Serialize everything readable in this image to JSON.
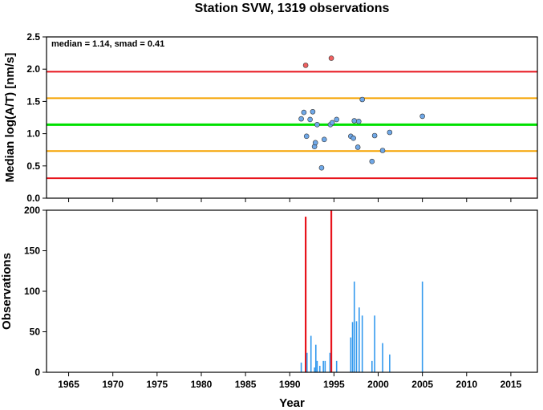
{
  "colors": {
    "red_line": "#e8141c",
    "orange_line": "#f5a300",
    "green_line": "#00e000",
    "point_blue": "#6fa8e8",
    "point_red": "#f06060",
    "bar_blue": "#3399ee",
    "bar_red": "#e8141c",
    "frame": "#000000"
  },
  "chart_data": [
    {
      "type": "scatter",
      "title": "Station SVW, 1319 observations",
      "annotation": "median = 1.14, smad = 0.41",
      "ylabel": "Median log(A/T) [nm/s]",
      "xlim": [
        1962.5,
        2018
      ],
      "ylim": [
        0,
        2.5
      ],
      "yticks": [
        0.0,
        0.5,
        1.0,
        1.5,
        2.0,
        2.5
      ],
      "ytick_labels": [
        "0.0",
        "0.5",
        "1.0",
        "1.5",
        "2.0",
        "2.5"
      ],
      "reference_lines": [
        {
          "y": 1.96,
          "color": "red"
        },
        {
          "y": 1.55,
          "color": "orange"
        },
        {
          "y": 1.14,
          "color": "green"
        },
        {
          "y": 0.73,
          "color": "orange"
        },
        {
          "y": 0.31,
          "color": "red"
        }
      ],
      "points": [
        {
          "x": 1991.3,
          "y": 1.23,
          "color": "blue"
        },
        {
          "x": 1991.6,
          "y": 1.33,
          "color": "blue"
        },
        {
          "x": 1991.9,
          "y": 0.96,
          "color": "blue"
        },
        {
          "x": 1992.3,
          "y": 1.22,
          "color": "blue"
        },
        {
          "x": 1992.6,
          "y": 1.34,
          "color": "blue"
        },
        {
          "x": 1992.8,
          "y": 0.8,
          "color": "blue"
        },
        {
          "x": 1992.9,
          "y": 0.86,
          "color": "blue"
        },
        {
          "x": 1993.1,
          "y": 1.14,
          "color": "blue"
        },
        {
          "x": 1993.6,
          "y": 0.47,
          "color": "blue"
        },
        {
          "x": 1993.9,
          "y": 0.91,
          "color": "blue"
        },
        {
          "x": 1994.6,
          "y": 1.14,
          "color": "blue"
        },
        {
          "x": 1994.8,
          "y": 1.17,
          "color": "blue"
        },
        {
          "x": 1995.3,
          "y": 1.22,
          "color": "blue"
        },
        {
          "x": 1996.9,
          "y": 0.96,
          "color": "blue"
        },
        {
          "x": 1997.2,
          "y": 0.93,
          "color": "blue"
        },
        {
          "x": 1997.3,
          "y": 1.2,
          "color": "blue"
        },
        {
          "x": 1997.7,
          "y": 0.79,
          "color": "blue"
        },
        {
          "x": 1997.8,
          "y": 1.19,
          "color": "blue"
        },
        {
          "x": 1998.2,
          "y": 1.53,
          "color": "blue"
        },
        {
          "x": 1999.3,
          "y": 0.57,
          "color": "blue"
        },
        {
          "x": 1999.6,
          "y": 0.97,
          "color": "blue"
        },
        {
          "x": 2000.5,
          "y": 0.74,
          "color": "blue"
        },
        {
          "x": 2001.3,
          "y": 1.02,
          "color": "blue"
        },
        {
          "x": 2005.0,
          "y": 1.27,
          "color": "blue"
        },
        {
          "x": 1991.8,
          "y": 2.06,
          "color": "red"
        },
        {
          "x": 1994.7,
          "y": 2.17,
          "color": "red"
        }
      ]
    },
    {
      "type": "bar",
      "ylabel": "Observations",
      "xlabel": "Year",
      "xlim": [
        1962.5,
        2018
      ],
      "ylim": [
        0,
        200
      ],
      "xticks": [
        1965,
        1970,
        1975,
        1980,
        1985,
        1990,
        1995,
        2000,
        2005,
        2010,
        2015
      ],
      "xtick_labels": [
        "1965",
        "1970",
        "1975",
        "1980",
        "1985",
        "1990",
        "1995",
        "2000",
        "2005",
        "2010",
        "2015"
      ],
      "yticks": [
        0,
        50,
        100,
        150,
        200
      ],
      "ytick_labels": [
        "0",
        "50",
        "100",
        "150",
        "200"
      ],
      "bars": [
        {
          "x": 1991.3,
          "value": 12,
          "color": "blue"
        },
        {
          "x": 1991.8,
          "value": 192,
          "color": "red"
        },
        {
          "x": 1991.95,
          "value": 24,
          "color": "blue"
        },
        {
          "x": 1992.4,
          "value": 45,
          "color": "blue"
        },
        {
          "x": 1992.8,
          "value": 6,
          "color": "blue"
        },
        {
          "x": 1992.95,
          "value": 34,
          "color": "blue"
        },
        {
          "x": 1993.1,
          "value": 14,
          "color": "blue"
        },
        {
          "x": 1993.4,
          "value": 8,
          "color": "blue"
        },
        {
          "x": 1993.8,
          "value": 14,
          "color": "blue"
        },
        {
          "x": 1994.0,
          "value": 14,
          "color": "blue"
        },
        {
          "x": 1994.55,
          "value": 24,
          "color": "blue"
        },
        {
          "x": 1994.7,
          "value": 200,
          "color": "red"
        },
        {
          "x": 1995.3,
          "value": 14,
          "color": "blue"
        },
        {
          "x": 1996.9,
          "value": 43,
          "color": "blue"
        },
        {
          "x": 1997.1,
          "value": 62,
          "color": "blue"
        },
        {
          "x": 1997.3,
          "value": 112,
          "color": "blue"
        },
        {
          "x": 1997.55,
          "value": 63,
          "color": "blue"
        },
        {
          "x": 1997.85,
          "value": 80,
          "color": "blue"
        },
        {
          "x": 1998.2,
          "value": 70,
          "color": "blue"
        },
        {
          "x": 1999.3,
          "value": 14,
          "color": "blue"
        },
        {
          "x": 1999.6,
          "value": 70,
          "color": "blue"
        },
        {
          "x": 2000.5,
          "value": 36,
          "color": "blue"
        },
        {
          "x": 2001.3,
          "value": 22,
          "color": "blue"
        },
        {
          "x": 2005.0,
          "value": 112,
          "color": "blue"
        }
      ]
    }
  ]
}
